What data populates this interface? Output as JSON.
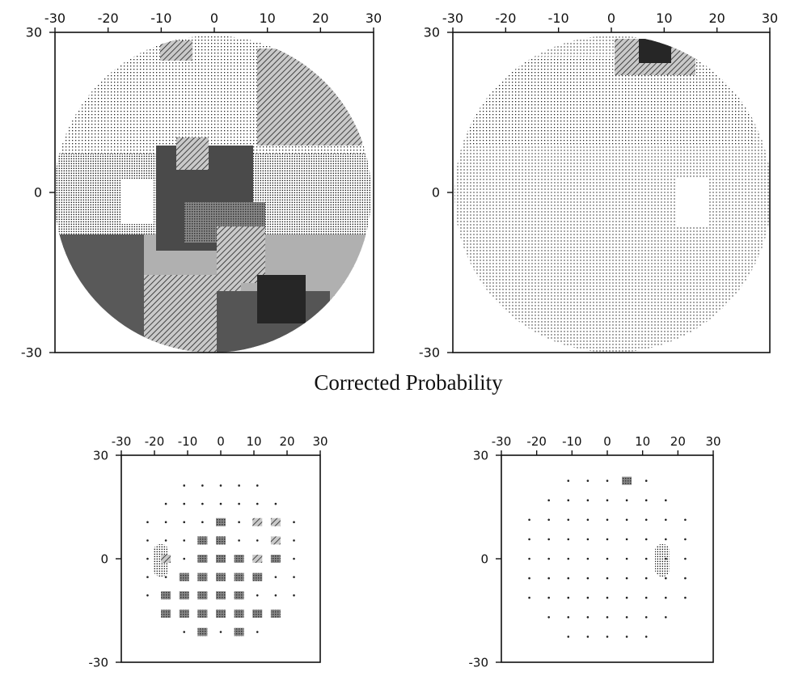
{
  "caption": "Corrected Probability",
  "axis_ticks": [
    "-30",
    "-20",
    "-10",
    "0",
    "10",
    "20",
    "30"
  ],
  "y_ticks": [
    "30",
    "0",
    "-30"
  ],
  "panels": {
    "top_left": {
      "kind": "greyscale-map",
      "shades": [
        "#ffffff",
        "#e0e0e0",
        "#b8b8b8",
        "#8a8a8a",
        "#555555",
        "#262626"
      ]
    },
    "top_right": {
      "kind": "greyscale-map",
      "shades": [
        "#ffffff",
        "#e8e8e8",
        "#555555",
        "#262626"
      ]
    },
    "bottom_left": {
      "kind": "symbol-grid",
      "symbols": [
        "dot",
        "hatch",
        "block"
      ]
    },
    "bottom_right": {
      "kind": "symbol-grid",
      "symbols": [
        "dot",
        "block"
      ]
    }
  }
}
